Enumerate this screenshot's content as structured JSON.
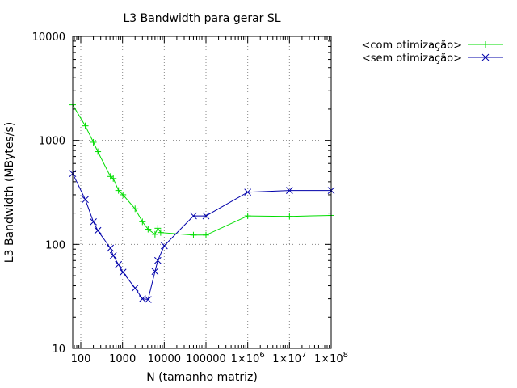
{
  "chart_data": {
    "type": "line",
    "title": "L3 Bandwidth para gerar SL",
    "xlabel": "N (tamanho matriz)",
    "ylabel": "L3 Bandwidth (MBytes/s)",
    "x_scale": "log",
    "y_scale": "log",
    "xlim": [
      64,
      100000000
    ],
    "ylim": [
      10,
      10000
    ],
    "grid": true,
    "legend_position": "outside-right-top",
    "x_ticks": [
      {
        "value": 100,
        "label": "100"
      },
      {
        "value": 1000,
        "label": "1000"
      },
      {
        "value": 10000,
        "label": "10000"
      },
      {
        "value": 100000,
        "label": "100000"
      },
      {
        "value": 1000000,
        "label": "1×10",
        "exp": "6"
      },
      {
        "value": 10000000,
        "label": "1×10",
        "exp": "7"
      },
      {
        "value": 100000000,
        "label": "1×10",
        "exp": "8"
      }
    ],
    "y_ticks": [
      {
        "value": 10,
        "label": "10"
      },
      {
        "value": 100,
        "label": "100"
      },
      {
        "value": 1000,
        "label": "1000"
      },
      {
        "value": 10000,
        "label": "10000"
      }
    ],
    "series": [
      {
        "name": "<com otimização>",
        "color": "#00dd00",
        "marker": "plus",
        "points": [
          [
            64,
            2200
          ],
          [
            128,
            1380
          ],
          [
            200,
            960
          ],
          [
            256,
            780
          ],
          [
            512,
            450
          ],
          [
            600,
            430
          ],
          [
            800,
            330
          ],
          [
            1024,
            300
          ],
          [
            2000,
            220
          ],
          [
            3000,
            165
          ],
          [
            4096,
            140
          ],
          [
            6000,
            125
          ],
          [
            7000,
            143
          ],
          [
            8192,
            130
          ],
          [
            50000,
            123
          ],
          [
            100000,
            123
          ],
          [
            1000000,
            188
          ],
          [
            10000000,
            186
          ],
          [
            100000000,
            190
          ]
        ]
      },
      {
        "name": "<sem otimização>",
        "color": "#0000aa",
        "marker": "x",
        "points": [
          [
            64,
            480
          ],
          [
            128,
            270
          ],
          [
            200,
            165
          ],
          [
            256,
            136
          ],
          [
            512,
            92
          ],
          [
            600,
            78
          ],
          [
            800,
            64
          ],
          [
            1024,
            54
          ],
          [
            2000,
            38
          ],
          [
            3000,
            30
          ],
          [
            4096,
            29.5
          ],
          [
            6000,
            55
          ],
          [
            7000,
            70
          ],
          [
            10000,
            97
          ],
          [
            50000,
            188
          ],
          [
            100000,
            188
          ],
          [
            1000000,
            318
          ],
          [
            10000000,
            330
          ],
          [
            100000000,
            330
          ]
        ]
      }
    ]
  }
}
